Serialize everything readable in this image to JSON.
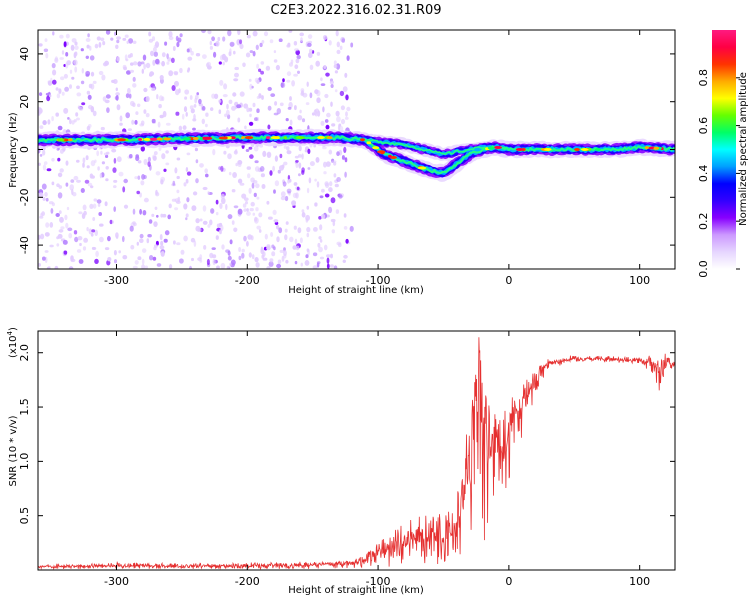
{
  "figure": {
    "title": "C2E3.2022.316.02.31.R09"
  },
  "colors": {
    "snr_line": "#e53030",
    "axes": "#000000",
    "background": "#ffffff",
    "colormap": [
      "#ffffff",
      "#e6d6ff",
      "#cc99ff",
      "#8800ff",
      "#3300ff",
      "#0000ff",
      "#00a0ff",
      "#00ffff",
      "#00ff66",
      "#66ff00",
      "#ffff00",
      "#ffaa00",
      "#ff3300",
      "#ff0044",
      "#ff1a80"
    ]
  },
  "chart_data": [
    {
      "type": "heatmap",
      "name": "spectrogram",
      "xlabel": "Height of straight line (km)",
      "ylabel": "Frequency (Hz)",
      "xlim": [
        -360,
        127
      ],
      "ylim": [
        -50,
        50
      ],
      "x_ticks": [
        -300,
        -200,
        -100,
        0,
        100
      ],
      "y_ticks": [
        -40,
        -20,
        0,
        20,
        40
      ],
      "grid": false,
      "ridge": {
        "description_points_x": [
          -360,
          -300,
          -200,
          -130,
          -110,
          -95,
          -80,
          -65,
          -50,
          -40,
          -30,
          -20,
          -10,
          0,
          20,
          50,
          80,
          100,
          127
        ],
        "description_points_y": [
          4,
          4,
          5,
          5,
          4,
          -2,
          -5,
          -8,
          -10,
          -6,
          -2,
          0,
          1,
          0,
          0,
          0,
          0,
          1,
          0
        ],
        "upper_branch_y": [
          4,
          4,
          5,
          5,
          4,
          3,
          2,
          0,
          -2,
          -1,
          0,
          1,
          1,
          0,
          0,
          0,
          0,
          1,
          0
        ]
      },
      "noise_region_xlim": [
        -360,
        -120
      ]
    },
    {
      "type": "colorbar",
      "name": "colorbar",
      "label": "Normalized spectral amplitude",
      "range": [
        0,
        1
      ],
      "ticks": [
        0.0,
        0.2,
        0.4,
        0.6,
        0.8
      ],
      "tick_labels": [
        "0.0",
        "0.2",
        "0.4",
        "0.6",
        "0.8"
      ]
    },
    {
      "type": "line",
      "name": "snr",
      "xlabel": "Height of straight line (km)",
      "ylabel": "SNR (10 * v/v)",
      "scale_note": "(x10",
      "scale_exponent": "4",
      "scale_close": ")",
      "xlim": [
        -360,
        127
      ],
      "ylim": [
        0,
        22000
      ],
      "x_ticks": [
        -300,
        -200,
        -100,
        0,
        100
      ],
      "y_ticks": [
        5000,
        10000,
        15000,
        20000
      ],
      "y_tick_labels": [
        "0.5",
        "1.0",
        "1.5",
        "2.0"
      ],
      "grid": false,
      "series": [
        {
          "x": [
            -360,
            -300,
            -250,
            -200,
            -150,
            -120,
            -110,
            -100,
            -90,
            -80,
            -70,
            -60,
            -50,
            -40,
            -35,
            -30,
            -25,
            -22,
            -20,
            -15,
            -10,
            -5,
            0,
            5,
            10,
            20,
            30,
            50,
            80,
            100,
            110,
            115,
            120,
            127
          ],
          "y": [
            300,
            400,
            350,
            400,
            500,
            600,
            1000,
            1500,
            2000,
            2500,
            3000,
            3000,
            3500,
            4000,
            7000,
            11000,
            16000,
            20000,
            13000,
            11000,
            12000,
            10000,
            13000,
            14000,
            15000,
            17500,
            19000,
            19500,
            19400,
            19300,
            19000,
            18500,
            19000,
            18800
          ],
          "envelope_upper": [
            500,
            700,
            600,
            700,
            800,
            900,
            1500,
            2500,
            3500,
            4500,
            5500,
            5000,
            5500,
            7000,
            11000,
            14000,
            19000,
            22000,
            18000,
            15000,
            16000,
            14000,
            16000,
            16500,
            17000,
            18500,
            19500,
            19800,
            19700,
            19600,
            19800,
            20200,
            20000,
            19100
          ],
          "envelope_lower": [
            100,
            100,
            100,
            100,
            100,
            100,
            100,
            200,
            300,
            300,
            500,
            500,
            500,
            1000,
            1500,
            3000,
            5000,
            8000,
            2000,
            4000,
            6000,
            5000,
            8000,
            10000,
            12000,
            16000,
            18500,
            19200,
            19100,
            19000,
            18000,
            16500,
            18500,
            18500
          ]
        }
      ]
    }
  ]
}
